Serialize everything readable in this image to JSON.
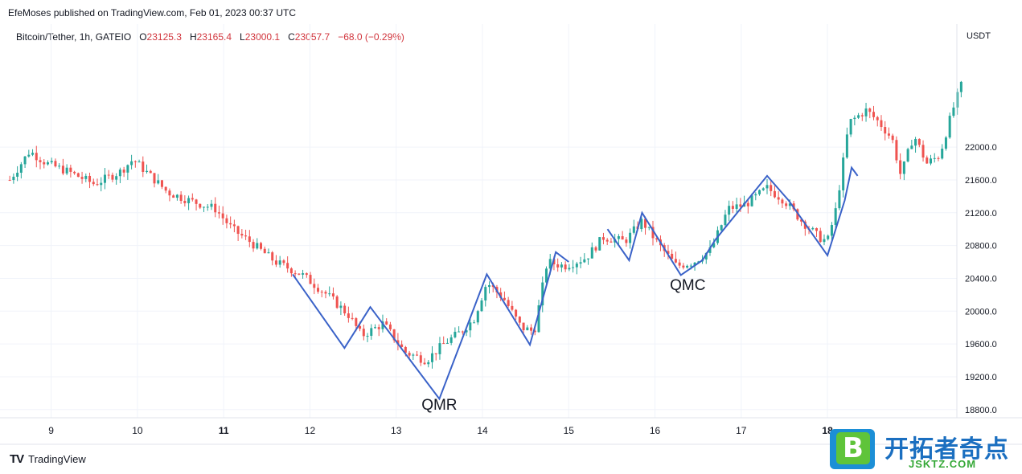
{
  "header": {
    "attribution": "EfeMoses published on TradingView.com, Feb 01, 2023 00:37 UTC",
    "symbol": "Bitcoin/Tether, 1h, GATEIO",
    "o_label": "O",
    "o_value": "23125.3",
    "h_label": "H",
    "h_value": "23165.4",
    "l_label": "L",
    "l_value": "23000.1",
    "c_label": "C",
    "c_value": "23057.7",
    "change": "−68.0 (−0.29%)"
  },
  "chart_data": {
    "type": "candlestick",
    "currency_label": "USDT",
    "ylim": [
      18700,
      23500
    ],
    "y_ticks": [
      18800,
      19200,
      19600,
      20000,
      20400,
      20800,
      21200,
      21600,
      22000
    ],
    "y_tick_labels": [
      "18800.0",
      "19200.0",
      "19600.0",
      "20000.0",
      "20400.0",
      "20800.0",
      "21200.0",
      "21600.0",
      "22000.0"
    ],
    "x_range_days": [
      8.5,
      19.5
    ],
    "x_ticks": [
      {
        "day": 9,
        "label": "9",
        "bold": false
      },
      {
        "day": 10,
        "label": "10",
        "bold": false
      },
      {
        "day": 11,
        "label": "11",
        "bold": true
      },
      {
        "day": 12,
        "label": "12",
        "bold": false
      },
      {
        "day": 13,
        "label": "13",
        "bold": false
      },
      {
        "day": 14,
        "label": "14",
        "bold": false
      },
      {
        "day": 15,
        "label": "15",
        "bold": false
      },
      {
        "day": 16,
        "label": "16",
        "bold": false
      },
      {
        "day": 17,
        "label": "17",
        "bold": false
      },
      {
        "day": 18,
        "label": "18",
        "bold": true
      }
    ],
    "anchors": [
      [
        8.52,
        21600
      ],
      [
        8.75,
        21950
      ],
      [
        8.95,
        21800
      ],
      [
        9.2,
        21700
      ],
      [
        9.5,
        21550
      ],
      [
        9.8,
        21700
      ],
      [
        9.95,
        21850
      ],
      [
        10.15,
        21650
      ],
      [
        10.35,
        21450
      ],
      [
        10.6,
        21350
      ],
      [
        10.9,
        21250
      ],
      [
        11.1,
        21000
      ],
      [
        11.3,
        20850
      ],
      [
        11.6,
        20600
      ],
      [
        11.9,
        20450
      ],
      [
        12.2,
        20200
      ],
      [
        12.45,
        19950
      ],
      [
        12.6,
        19700
      ],
      [
        12.85,
        19850
      ],
      [
        13.1,
        19500
      ],
      [
        13.35,
        19400
      ],
      [
        13.55,
        19600
      ],
      [
        13.75,
        19750
      ],
      [
        13.9,
        19900
      ],
      [
        14.05,
        20350
      ],
      [
        14.25,
        20150
      ],
      [
        14.45,
        19800
      ],
      [
        14.6,
        19750
      ],
      [
        14.75,
        20600
      ],
      [
        14.95,
        20550
      ],
      [
        15.2,
        20650
      ],
      [
        15.4,
        20900
      ],
      [
        15.65,
        20850
      ],
      [
        15.85,
        21100
      ],
      [
        16.05,
        20800
      ],
      [
        16.25,
        20550
      ],
      [
        16.45,
        20600
      ],
      [
        16.65,
        20750
      ],
      [
        16.85,
        21250
      ],
      [
        17.05,
        21300
      ],
      [
        17.3,
        21500
      ],
      [
        17.5,
        21350
      ],
      [
        17.7,
        21100
      ],
      [
        17.9,
        20900
      ],
      [
        18.0,
        20850
      ],
      [
        18.1,
        21250
      ],
      [
        18.25,
        22300
      ],
      [
        18.45,
        22450
      ],
      [
        18.6,
        22300
      ],
      [
        18.75,
        22100
      ],
      [
        18.85,
        21650
      ],
      [
        19.0,
        22150
      ],
      [
        19.15,
        21800
      ],
      [
        19.3,
        21900
      ],
      [
        19.45,
        22450
      ],
      [
        19.55,
        22750
      ]
    ],
    "pattern_lines": [
      [
        [
          11.8,
          20450
        ],
        [
          12.4,
          19550
        ],
        [
          12.7,
          20050
        ],
        [
          13.5,
          18930
        ],
        [
          14.05,
          20450
        ],
        [
          14.55,
          19590
        ],
        [
          14.85,
          20720
        ],
        [
          15.0,
          20600
        ]
      ],
      [
        [
          15.45,
          21000
        ],
        [
          15.7,
          20620
        ],
        [
          15.85,
          21200
        ],
        [
          16.3,
          20440
        ],
        [
          16.55,
          20620
        ],
        [
          16.7,
          20870
        ],
        [
          17.3,
          21650
        ],
        [
          17.55,
          21350
        ],
        [
          18.0,
          20680
        ],
        [
          18.2,
          21350
        ],
        [
          18.28,
          21750
        ],
        [
          18.35,
          21650
        ]
      ]
    ],
    "annotations": [
      {
        "text": "QMR",
        "day": 13.5,
        "price": 18800
      },
      {
        "text": "QMC",
        "day": 16.38,
        "price": 20260
      }
    ],
    "colors": {
      "up": "#26a69a",
      "down": "#ef5350",
      "pattern": "#3a62c8"
    }
  },
  "footer": {
    "logo": "TV",
    "brand": "TradingView"
  },
  "watermark": {
    "name": "开拓者奇点",
    "url": "JSKTZ.COM",
    "badge_letter": "B"
  }
}
